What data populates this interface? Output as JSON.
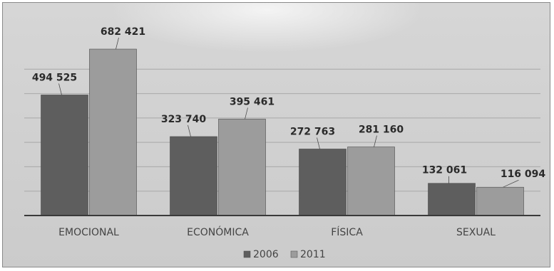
{
  "chart_data": {
    "type": "bar",
    "title": "",
    "xlabel": "",
    "ylabel": "",
    "ylim": [
      0,
      700000
    ],
    "grid": true,
    "legend_position": "bottom",
    "categories": [
      "EMOCIONAL",
      "ECONÓMICA",
      "FÍSICA",
      "SEXUAL"
    ],
    "series": [
      {
        "name": "2006",
        "color": "#5e5e5e",
        "values": [
          494525,
          323740,
          272763,
          132061
        ],
        "labels": [
          "494 525",
          "323 740",
          "272 763",
          "132 061"
        ]
      },
      {
        "name": "2011",
        "color": "#9c9c9c",
        "values": [
          682421,
          395461,
          281160,
          116094
        ],
        "labels": [
          "682 421",
          "395 461",
          "281 160",
          "116 094"
        ]
      }
    ]
  }
}
